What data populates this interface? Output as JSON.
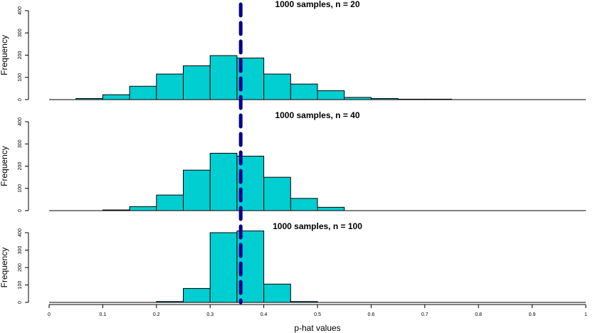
{
  "chart_data": [
    {
      "type": "bar",
      "title": "1000 samples, n = 20",
      "ylabel": "Frequency",
      "xlabel": "",
      "ylim": [
        0,
        400
      ],
      "yticks": [
        0,
        100,
        200,
        300,
        400
      ],
      "bin_edges": [
        0.05,
        0.1,
        0.15,
        0.2,
        0.25,
        0.3,
        0.35,
        0.4,
        0.45,
        0.5,
        0.55,
        0.6,
        0.65,
        0.7,
        0.75
      ],
      "values": [
        5,
        22,
        60,
        115,
        152,
        198,
        187,
        115,
        70,
        40,
        10,
        5,
        2,
        2
      ],
      "reference_line": 0.357
    },
    {
      "type": "bar",
      "title": "1000 samples, n = 40",
      "ylabel": "Frequency",
      "xlabel": "",
      "ylim": [
        0,
        400
      ],
      "yticks": [
        0,
        100,
        200,
        300,
        400
      ],
      "bin_edges": [
        0.1,
        0.15,
        0.2,
        0.25,
        0.3,
        0.35,
        0.4,
        0.45,
        0.5,
        0.55
      ],
      "values": [
        3,
        18,
        70,
        182,
        258,
        245,
        150,
        55,
        15
      ],
      "reference_line": 0.357
    },
    {
      "type": "bar",
      "title": "1000 samples, n = 100",
      "ylabel": "Frequency",
      "xlabel": "p-hat values",
      "ylim": [
        0,
        400
      ],
      "yticks": [
        0,
        100,
        200,
        300,
        400
      ],
      "xticks": [
        "0",
        "0.1",
        "0.2",
        "0.3",
        "0.4",
        "0.5",
        "0.6",
        "0.7",
        "0.8",
        "0.9",
        "1"
      ],
      "xlim": [
        0,
        1
      ],
      "bin_edges": [
        0.2,
        0.25,
        0.3,
        0.35,
        0.4,
        0.45,
        0.5
      ],
      "values": [
        5,
        80,
        400,
        410,
        105,
        5
      ],
      "reference_line": 0.357
    }
  ],
  "colors": {
    "bar_fill": "#00CED1",
    "bar_stroke": "#000000",
    "reference_line": "#00008B"
  }
}
